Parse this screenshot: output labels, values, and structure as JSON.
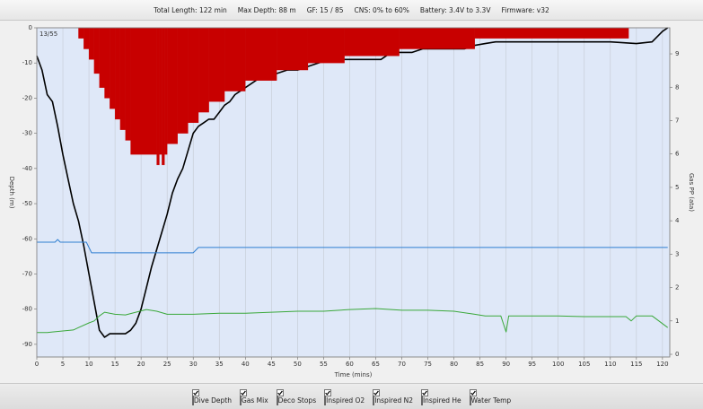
{
  "header": [
    "Total Length: 122 min",
    "Max Depth: 88 m",
    "GF: 15 / 85",
    "CNS: 0% to 60%",
    "Battery: 3.4V to 3.3V",
    "Firmware: v32"
  ],
  "chart_data": {
    "type": "line",
    "corner_label": "13/55",
    "xlabel": "Time (mins)",
    "ylabel": "Depth (m)",
    "y2label": "Gas PP (ata)",
    "xlim": [
      0,
      121.4
    ],
    "ylim": [
      -93.6,
      0
    ],
    "y2lim": [
      -0.08,
      9.78
    ],
    "xticks": [
      0,
      5,
      10,
      15,
      20,
      25,
      30,
      35,
      40,
      45,
      50,
      55,
      60,
      65,
      70,
      75,
      80,
      85,
      90,
      95,
      100,
      105,
      110,
      115,
      120
    ],
    "yticks": [
      0,
      -10,
      -20,
      -30,
      -40,
      -50,
      -60,
      -70,
      -80,
      -90
    ],
    "y2ticks": [
      0,
      1,
      2,
      3,
      4,
      5,
      6,
      7,
      8,
      9
    ],
    "grid": true,
    "series": [
      {
        "name": "Dive Depth",
        "color": "#000000",
        "type": "line",
        "x": [
          0,
          1,
          2,
          3,
          4,
          5,
          6,
          7,
          8,
          9,
          10,
          11,
          12,
          13,
          14,
          15,
          16,
          17,
          18,
          19,
          20,
          21,
          22,
          23,
          24,
          25,
          26,
          27,
          28,
          29,
          30,
          31,
          32,
          33,
          34,
          35,
          36,
          37,
          38,
          39,
          40,
          42,
          44,
          46,
          48,
          50,
          52,
          54,
          56,
          58,
          60,
          62,
          64,
          66,
          68,
          70,
          72,
          74,
          76,
          78,
          80,
          82,
          84,
          86,
          88,
          90,
          95,
          100,
          105,
          110,
          115,
          118,
          120,
          121
        ],
        "values": [
          -8,
          -12,
          -19,
          -21,
          -28,
          -36,
          -43,
          -50,
          -55,
          -62,
          -70,
          -78,
          -86,
          -88,
          -87,
          -87,
          -87,
          -87,
          -86,
          -84,
          -80,
          -74,
          -68,
          -63,
          -58,
          -53,
          -47,
          -43,
          -40,
          -35,
          -30,
          -28,
          -27,
          -26,
          -26,
          -24,
          -22,
          -21,
          -19,
          -18,
          -17,
          -15,
          -13,
          -13,
          -12,
          -12,
          -11,
          -10,
          -9,
          -9,
          -9,
          -9,
          -9,
          -9,
          -7,
          -7,
          -7,
          -6,
          -6,
          -6,
          -6,
          -6,
          -5,
          -4.5,
          -4,
          -4,
          -4,
          -4,
          -4,
          -4,
          -4.5,
          -4,
          -1,
          0
        ]
      },
      {
        "name": "Gas Mix",
        "color": "#2f7fd1",
        "swatch": "#8fd0ef",
        "type": "line",
        "axis": "y2",
        "x": [
          0,
          3.5,
          4,
          4.5,
          5,
          9.5,
          10.5,
          30,
          30.5,
          31,
          121
        ],
        "values": [
          3.36,
          3.36,
          3.44,
          3.36,
          3.36,
          3.36,
          3.04,
          3.04,
          3.12,
          3.2,
          3.2
        ]
      },
      {
        "name": "Deco Stops",
        "color": "#c80000",
        "type": "step-area",
        "edges": [
          8,
          9,
          10,
          11,
          12,
          13,
          14,
          15,
          16,
          17,
          18,
          23,
          23.5,
          24,
          24.5,
          25,
          27,
          29,
          31,
          33,
          36,
          40,
          46,
          52,
          59,
          69.5,
          84,
          113.5
        ],
        "values": [
          -3,
          -6,
          -9,
          -13,
          -17,
          -20,
          -23,
          -26,
          -29,
          -32,
          -36,
          -39,
          -36,
          -39,
          -36,
          -33,
          -30,
          -27,
          -24,
          -21,
          -18,
          -15,
          -12,
          -10,
          -8,
          -6,
          -3
        ]
      },
      {
        "name": "Inspired O2",
        "color": "#3aa83a",
        "type": "line",
        "axis": "y2",
        "x": [
          0,
          2,
          3,
          5,
          7,
          8,
          10,
          11,
          12,
          13,
          15,
          17,
          19,
          21,
          23,
          25,
          30,
          35,
          40,
          45,
          50,
          55,
          60,
          65,
          70,
          75,
          80,
          84,
          86,
          89,
          90,
          90.5,
          95,
          100,
          105,
          110,
          113,
          114,
          115,
          118,
          121
        ],
        "values": [
          0.65,
          0.65,
          0.67,
          0.7,
          0.73,
          0.8,
          0.94,
          1.0,
          1.15,
          1.26,
          1.2,
          1.18,
          1.26,
          1.34,
          1.29,
          1.2,
          1.2,
          1.23,
          1.23,
          1.26,
          1.29,
          1.29,
          1.34,
          1.37,
          1.32,
          1.32,
          1.29,
          1.2,
          1.15,
          1.15,
          0.67,
          1.15,
          1.15,
          1.15,
          1.13,
          1.13,
          1.13,
          1.0,
          1.15,
          1.15,
          0.8
        ]
      },
      {
        "name": "Inspired N2",
        "color": "#c88a00"
      },
      {
        "name": "Inspired He",
        "color": "#9a9a9a"
      },
      {
        "name": "Water Temp",
        "color": "#1f5fb5"
      }
    ]
  }
}
